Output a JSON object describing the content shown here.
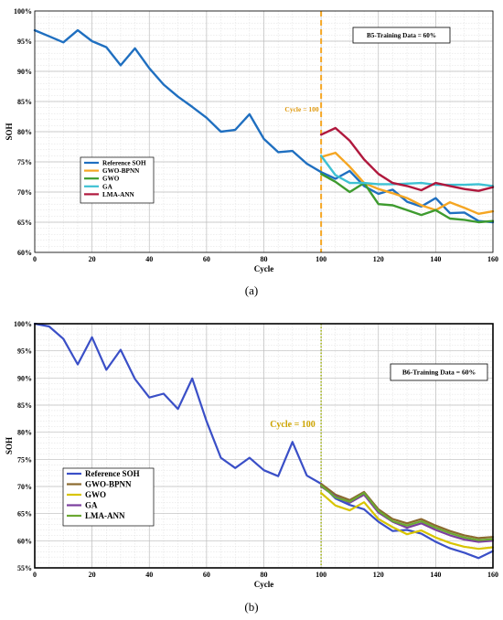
{
  "figure_labels": [
    "(a)",
    "(b)"
  ],
  "chart_data": [
    {
      "type": "line",
      "xlabel": "Cycle",
      "ylabel": "SOH",
      "xlim": [
        0,
        160
      ],
      "ylim": [
        60,
        100
      ],
      "xticks": [
        0,
        20,
        40,
        60,
        80,
        100,
        120,
        140,
        160
      ],
      "yticks": [
        60,
        65,
        70,
        75,
        80,
        85,
        90,
        95,
        100
      ],
      "ytick_labels": [
        "60%",
        "65%",
        "70%",
        "75%",
        "80%",
        "85%",
        "90%",
        "95%",
        "100%"
      ],
      "grid": true,
      "legend_position": "center-left",
      "info_box": "B5-Training Data = 60%",
      "annotation": "Cycle = 100",
      "vline": {
        "x": 100,
        "color": "#F5A623",
        "style": "dashed"
      },
      "series": [
        {
          "name": "Reference SOH",
          "color": "#1F6FC0",
          "x": [
            0,
            5,
            10,
            15,
            20,
            25,
            30,
            35,
            40,
            45,
            50,
            55,
            60,
            65,
            70,
            75,
            80,
            85,
            90,
            95,
            100,
            105,
            110,
            115,
            120,
            125,
            130,
            135,
            140,
            145,
            150,
            155,
            160
          ],
          "y": [
            96.8,
            95.8,
            94.8,
            96.8,
            95.0,
            94.0,
            91.0,
            93.8,
            90.5,
            87.8,
            85.8,
            84.1,
            82.3,
            80.0,
            80.3,
            82.9,
            78.8,
            76.6,
            76.8,
            74.7,
            73.3,
            72.2,
            73.5,
            71.0,
            69.7,
            70.4,
            68.4,
            67.6,
            69.0,
            66.5,
            66.6,
            65.2,
            65.0
          ]
        },
        {
          "name": "GWO-BPNN",
          "color": "#F5A623",
          "x": [
            100,
            105,
            110,
            115,
            120,
            125,
            130,
            135,
            140,
            145,
            150,
            155,
            160
          ],
          "y": [
            75.8,
            76.5,
            74.2,
            71.5,
            70.5,
            69.8,
            69.0,
            67.8,
            67.0,
            68.3,
            67.4,
            66.4,
            66.8
          ]
        },
        {
          "name": "GWO",
          "color": "#3E9B2F",
          "x": [
            100,
            105,
            110,
            115,
            120,
            125,
            130,
            135,
            140,
            145,
            150,
            155,
            160
          ],
          "y": [
            73.0,
            71.7,
            70.0,
            71.5,
            68.0,
            67.8,
            67.0,
            66.2,
            67.0,
            65.6,
            65.4,
            65.0,
            65.2
          ]
        },
        {
          "name": "GA",
          "color": "#3EC1D3",
          "x": [
            100,
            105,
            110,
            115,
            120,
            125,
            130,
            135,
            140,
            145,
            150,
            155,
            160
          ],
          "y": [
            76.0,
            72.8,
            71.5,
            71.5,
            71.3,
            71.3,
            71.4,
            71.5,
            71.2,
            71.2,
            71.2,
            71.3,
            71.0
          ]
        },
        {
          "name": "LMA-ANN",
          "color": "#B0183D",
          "x": [
            100,
            105,
            110,
            115,
            120,
            125,
            130,
            135,
            140,
            145,
            150,
            155,
            160
          ],
          "y": [
            79.5,
            80.6,
            78.5,
            75.4,
            73.0,
            71.5,
            71.0,
            70.3,
            71.5,
            71.0,
            70.5,
            70.2,
            70.8
          ]
        }
      ]
    },
    {
      "type": "line",
      "xlabel": "Cycle",
      "ylabel": "SOH",
      "xlim": [
        0,
        160
      ],
      "ylim": [
        55,
        100
      ],
      "xticks": [
        0,
        20,
        40,
        60,
        80,
        100,
        120,
        140,
        160
      ],
      "yticks": [
        55,
        60,
        65,
        70,
        75,
        80,
        85,
        90,
        95,
        100
      ],
      "ytick_labels": [
        "55%",
        "60%",
        "65%",
        "70%",
        "75%",
        "80%",
        "85%",
        "90%",
        "95%",
        "100%"
      ],
      "grid": true,
      "legend_position": "bottom-left",
      "info_box": "B6-Training Data = 60%",
      "annotation": "Cycle = 100",
      "vline": {
        "x": 100,
        "color": "#9CB000",
        "style": "dotted"
      },
      "series": [
        {
          "name": "Reference SOH",
          "color": "#3A4FC7",
          "x": [
            0,
            5,
            10,
            15,
            20,
            25,
            30,
            35,
            40,
            45,
            50,
            55,
            60,
            65,
            70,
            75,
            80,
            85,
            90,
            95,
            100,
            105,
            110,
            115,
            120,
            125,
            130,
            135,
            140,
            145,
            150,
            155,
            160
          ],
          "y": [
            100,
            99.5,
            97.2,
            92.5,
            97.5,
            91.5,
            95.2,
            89.8,
            86.4,
            87.1,
            84.3,
            89.9,
            82.0,
            75.3,
            73.4,
            75.3,
            73.0,
            71.9,
            78.2,
            72.0,
            70.5,
            67.8,
            66.6,
            65.8,
            63.5,
            61.8,
            62.0,
            61.3,
            59.8,
            58.6,
            57.8,
            56.8,
            58.1
          ]
        },
        {
          "name": "GWO-BPNN",
          "color": "#8B6A2F",
          "x": [
            100,
            105,
            110,
            115,
            120,
            125,
            130,
            135,
            140,
            145,
            150,
            155,
            160
          ],
          "y": [
            70.5,
            68.5,
            67.5,
            69.0,
            65.8,
            64.0,
            63.2,
            64.0,
            62.8,
            61.8,
            61.0,
            60.5,
            60.7
          ]
        },
        {
          "name": "GWO",
          "color": "#D8C400",
          "x": [
            100,
            105,
            110,
            115,
            120,
            125,
            130,
            135,
            140,
            145,
            150,
            155,
            160
          ],
          "y": [
            68.8,
            66.5,
            65.6,
            67.1,
            64.0,
            62.5,
            61.2,
            61.9,
            60.6,
            59.6,
            58.9,
            58.5,
            58.8
          ]
        },
        {
          "name": "GA",
          "color": "#7B3F9E",
          "x": [
            100,
            105,
            110,
            115,
            120,
            125,
            130,
            135,
            140,
            145,
            150,
            155,
            160
          ],
          "y": [
            70.0,
            68.2,
            67.0,
            68.5,
            65.2,
            63.5,
            62.4,
            63.2,
            62.0,
            61.0,
            60.2,
            59.8,
            60.0
          ]
        },
        {
          "name": "LMA-ANN",
          "color": "#6BA832",
          "x": [
            100,
            105,
            110,
            115,
            120,
            125,
            130,
            135,
            140,
            145,
            150,
            155,
            160
          ],
          "y": [
            70.2,
            68.0,
            67.2,
            68.8,
            65.5,
            63.6,
            62.8,
            63.6,
            62.4,
            61.4,
            60.6,
            60.1,
            60.3
          ]
        }
      ]
    }
  ]
}
